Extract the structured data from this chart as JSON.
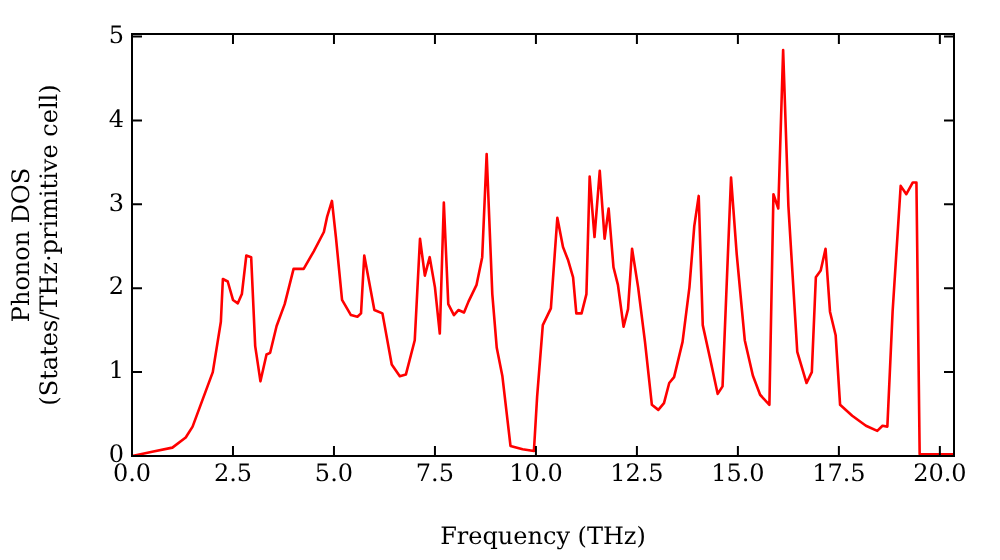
{
  "chart_data": {
    "type": "line",
    "xlabel": "Frequency (THz)",
    "ylabel": "Phonon DOS\n(States/THz·primitive cell)",
    "x": [
      0,
      0.5,
      1.0,
      1.33,
      1.5,
      2.0,
      2.2,
      2.25,
      2.37,
      2.5,
      2.62,
      2.72,
      2.83,
      2.95,
      3.05,
      3.18,
      3.33,
      3.42,
      3.58,
      3.78,
      4.0,
      4.25,
      4.5,
      4.75,
      4.83,
      4.95,
      5.05,
      5.2,
      5.42,
      5.58,
      5.67,
      5.75,
      6.0,
      6.2,
      6.43,
      6.63,
      6.78,
      7.0,
      7.13,
      7.25,
      7.37,
      7.5,
      7.62,
      7.72,
      7.83,
      7.97,
      8.08,
      8.22,
      8.33,
      8.53,
      8.67,
      8.78,
      8.92,
      9.03,
      9.17,
      9.37,
      9.67,
      9.95,
      10.03,
      10.17,
      10.37,
      10.53,
      10.67,
      10.8,
      10.92,
      11.0,
      11.13,
      11.25,
      11.33,
      11.45,
      11.58,
      11.7,
      11.8,
      11.92,
      12.03,
      12.17,
      12.28,
      12.38,
      12.53,
      12.7,
      12.87,
      13.03,
      13.17,
      13.3,
      13.42,
      13.63,
      13.8,
      13.92,
      14.03,
      14.13,
      14.33,
      14.5,
      14.62,
      14.83,
      14.97,
      15.17,
      15.37,
      15.55,
      15.78,
      15.88,
      16.0,
      16.12,
      16.25,
      16.47,
      16.7,
      16.83,
      16.93,
      17.05,
      17.17,
      17.28,
      17.42,
      17.53,
      17.83,
      18.17,
      18.45,
      18.58,
      18.7,
      18.83,
      19.03,
      19.17,
      19.33,
      19.42,
      19.5,
      20.17,
      20.33
    ],
    "series": [
      {
        "color": "#ff0000",
        "values": [
          0,
          0.05,
          0.1,
          0.22,
          0.35,
          1.0,
          1.6,
          2.11,
          2.08,
          1.86,
          1.82,
          1.93,
          2.39,
          2.37,
          1.31,
          0.89,
          1.21,
          1.23,
          1.55,
          1.81,
          2.23,
          2.23,
          2.44,
          2.67,
          2.85,
          3.04,
          2.6,
          1.86,
          1.68,
          1.66,
          1.7,
          2.39,
          1.74,
          1.7,
          1.09,
          0.95,
          0.97,
          1.38,
          2.59,
          2.15,
          2.37,
          2.01,
          1.46,
          3.02,
          1.81,
          1.68,
          1.74,
          1.71,
          1.84,
          2.04,
          2.37,
          3.6,
          1.93,
          1.29,
          0.95,
          0.12,
          0.08,
          0.06,
          0.71,
          1.56,
          1.76,
          2.84,
          2.49,
          2.33,
          2.13,
          1.7,
          1.7,
          1.93,
          3.33,
          2.61,
          3.4,
          2.59,
          2.95,
          2.25,
          2.04,
          1.54,
          1.75,
          2.47,
          2.01,
          1.36,
          0.61,
          0.55,
          0.63,
          0.87,
          0.94,
          1.36,
          2.01,
          2.74,
          3.1,
          1.56,
          1.12,
          0.74,
          0.83,
          3.32,
          2.41,
          1.38,
          0.96,
          0.73,
          0.61,
          3.12,
          2.95,
          4.84,
          2.98,
          1.24,
          0.87,
          1.0,
          2.13,
          2.21,
          2.47,
          1.72,
          1.44,
          0.61,
          0.48,
          0.36,
          0.3,
          0.36,
          0.35,
          1.72,
          3.22,
          3.12,
          3.26,
          3.26,
          0.02,
          0.02,
          0.02
        ]
      }
    ],
    "xlim": [
      0,
      20.35
    ],
    "ylim": [
      0,
      5.03
    ],
    "xticks": [
      {
        "value": 0,
        "label": "0.0"
      },
      {
        "value": 2.5,
        "label": "2.5"
      },
      {
        "value": 5,
        "label": "5.0"
      },
      {
        "value": 7.5,
        "label": "7.5"
      },
      {
        "value": 10,
        "label": "10.0"
      },
      {
        "value": 12.5,
        "label": "12.5"
      },
      {
        "value": 15,
        "label": "15.0"
      },
      {
        "value": 17.5,
        "label": "17.5"
      },
      {
        "value": 20,
        "label": "20.0"
      }
    ],
    "yticks": [
      0,
      1,
      2,
      3,
      4,
      5
    ],
    "grid": false,
    "legend": false,
    "marker": "none",
    "line_style": "solid"
  }
}
